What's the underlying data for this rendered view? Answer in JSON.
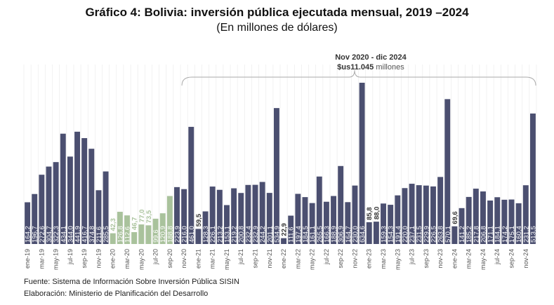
{
  "chart_data": {
    "type": "bar",
    "title": "Gráfico 4: Bolivia: inversión pública ejecutada mensual, 2019 –2024",
    "subtitle": "(En millones de dólares)",
    "xlabel": "",
    "ylabel": "",
    "ylim": [
      0,
      650
    ],
    "grid": "vertical",
    "values": [
      164.2,
      196.7,
      272.6,
      304.7,
      322.3,
      434.1,
      344.0,
      441.9,
      416.7,
      374.8,
      211.6,
      285.5,
      42.3,
      126.8,
      112.6,
      46.7,
      77.0,
      73.5,
      99.6,
      120.9,
      188.8,
      223.9,
      216.0,
      461.0,
      59.5,
      128.3,
      226.1,
      213.2,
      153.1,
      219.2,
      200.8,
      232.4,
      232.9,
      244.2,
      201.1,
      534.9,
      22.9,
      111.6,
      197.4,
      184.5,
      161.1,
      265.5,
      166.3,
      188.9,
      306.9,
      164.7,
      230.0,
      634.6,
      85.8,
      88.0,
      159.3,
      154.3,
      191.4,
      220.0,
      237.1,
      231.5,
      229.9,
      226.5,
      263.8,
      570.1,
      69.6,
      141.2,
      185.2,
      217.8,
      206.8,
      171.1,
      184.1,
      174.2,
      175.1,
      160.4,
      231.2,
      513.5
    ],
    "tick_labels": [
      "ene-19",
      "mar-19",
      "may-19",
      "jul-19",
      "sep-19",
      "nov-19",
      "ene-20",
      "mar-20",
      "may-20",
      "jul-20",
      "sep-20",
      "nov-20",
      "ene-21",
      "mar-21",
      "may-21",
      "jul-21",
      "sep-21",
      "nov-21",
      "ene-22",
      "mar-22",
      "may-22",
      "jul-22",
      "sep-22",
      "nov-22",
      "ene-23",
      "mar-23",
      "may-23",
      "jul-23",
      "sep-23",
      "nov-23",
      "ene-24",
      "mar-24",
      "may-24",
      "jul-24",
      "sep-24",
      "nov-24"
    ],
    "highlight_range": [
      "ene-20",
      "sep-20"
    ],
    "colors": {
      "default": "#4b4f70",
      "highlight": "#a9c29c"
    },
    "annotation": {
      "line1": "Nov 2020 - dic 2024",
      "amount": "$us11.045",
      "unit": "millones",
      "range": [
        "nov-20",
        "dic-24"
      ]
    }
  },
  "footer": {
    "source": "Fuente: Sistema de Información Sobre Inversión Pública SISIN",
    "prepared": "Elaboración: Ministerio de Planificación del Desarrollo"
  }
}
